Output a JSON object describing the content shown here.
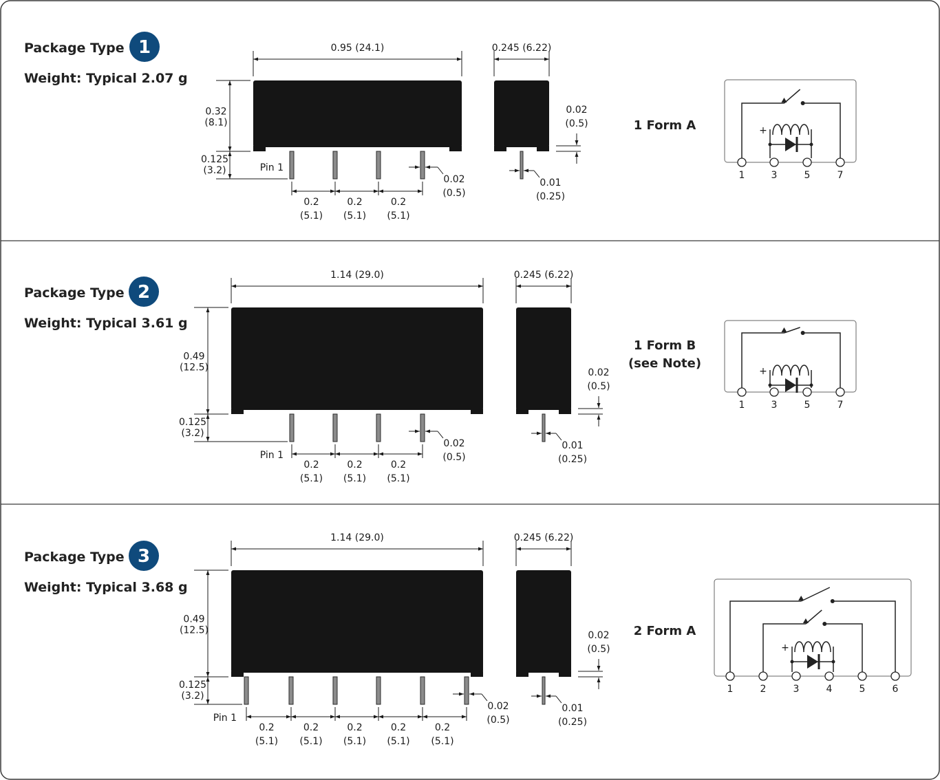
{
  "sections": [
    {
      "title": "Package Type",
      "badge": "1",
      "weight": "Weight: Typical 2.07 g",
      "form": [
        "1 Form A"
      ],
      "length": "0.95 (24.1)",
      "width": "0.245 (6.22)",
      "height_in": "0.32",
      "height_mm": "(8.1)",
      "pin_len_in": "0.125",
      "pin_len_mm": "(3.2)",
      "pin1": "Pin 1",
      "pitch_in": "0.2",
      "pitch_mm": "(5.1)",
      "pin_w_in": "0.02",
      "pin_w_mm": "(0.5)",
      "standoff_in": "0.02",
      "standoff_mm": "(0.5)",
      "pin_t_in": "0.01",
      "pin_t_mm": "(0.25)",
      "terminals": [
        "1",
        "3",
        "5",
        "7"
      ]
    },
    {
      "title": "Package Type",
      "badge": "2",
      "weight": "Weight: Typical 3.61 g",
      "form": [
        "1 Form B",
        "(see Note)"
      ],
      "length": "1.14 (29.0)",
      "width": "0.245 (6.22)",
      "height_in": "0.49",
      "height_mm": "(12.5)",
      "pin_len_in": "0.125",
      "pin_len_mm": "(3.2)",
      "pin1": "Pin 1",
      "pitch_in": "0.2",
      "pitch_mm": "(5.1)",
      "pin_w_in": "0.02",
      "pin_w_mm": "(0.5)",
      "standoff_in": "0.02",
      "standoff_mm": "(0.5)",
      "pin_t_in": "0.01",
      "pin_t_mm": "(0.25)",
      "terminals": [
        "1",
        "3",
        "5",
        "7"
      ]
    },
    {
      "title": "Package Type",
      "badge": "3",
      "weight": "Weight: Typical 3.68 g",
      "form": [
        "2 Form A"
      ],
      "length": "1.14 (29.0)",
      "width": "0.245 (6.22)",
      "height_in": "0.49",
      "height_mm": "(12.5)",
      "pin_len_in": "0.125",
      "pin_len_mm": "(3.2)",
      "pin1": "Pin 1",
      "pitch_in": "0.2",
      "pitch_mm": "(5.1)",
      "pin_w_in": "0.02",
      "pin_w_mm": "(0.5)",
      "standoff_in": "0.02",
      "standoff_mm": "(0.5)",
      "pin_t_in": "0.01",
      "pin_t_mm": "(0.25)",
      "terminals": [
        "1",
        "2",
        "3",
        "4",
        "5",
        "6"
      ]
    }
  ],
  "coil_polarity": "+",
  "colors": {
    "badge": "#0f4a7c",
    "body": "#151515",
    "pin": "#8c8c8c"
  }
}
